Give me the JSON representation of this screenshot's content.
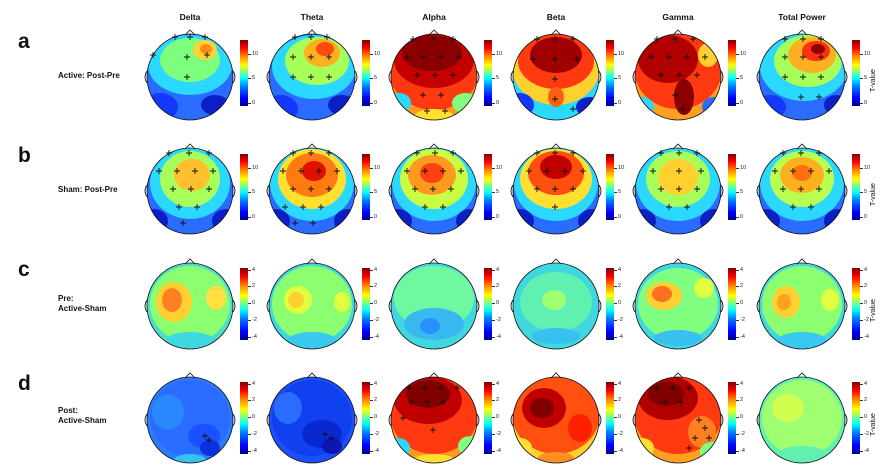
{
  "bands": [
    "Delta",
    "Theta",
    "Alpha",
    "Beta",
    "Gamma",
    "Total Power"
  ],
  "rows": [
    {
      "letter": "a",
      "label": [
        "Active: Post-Pre"
      ]
    },
    {
      "letter": "b",
      "label": [
        "Sham: Post-Pre"
      ]
    },
    {
      "letter": "c",
      "label": [
        "Pre:",
        "Active-Sham"
      ]
    },
    {
      "letter": "d",
      "label": [
        "Post:",
        "Active-Sham"
      ]
    }
  ],
  "colorbar_ticks": {
    "a": [
      "10",
      "5",
      "0"
    ],
    "b": [
      "10",
      "5",
      "0"
    ],
    "c": [
      "4",
      "2",
      "0",
      "-2",
      "-4"
    ],
    "d": [
      "4",
      "2",
      "0",
      "-2",
      "-4"
    ]
  },
  "colorbar_label": "T-value",
  "colormap": [
    "#00008f",
    "#0000ff",
    "#0080ff",
    "#00ffff",
    "#80ff80",
    "#ffff00",
    "#ff8000",
    "#ff0000",
    "#800000"
  ]
}
